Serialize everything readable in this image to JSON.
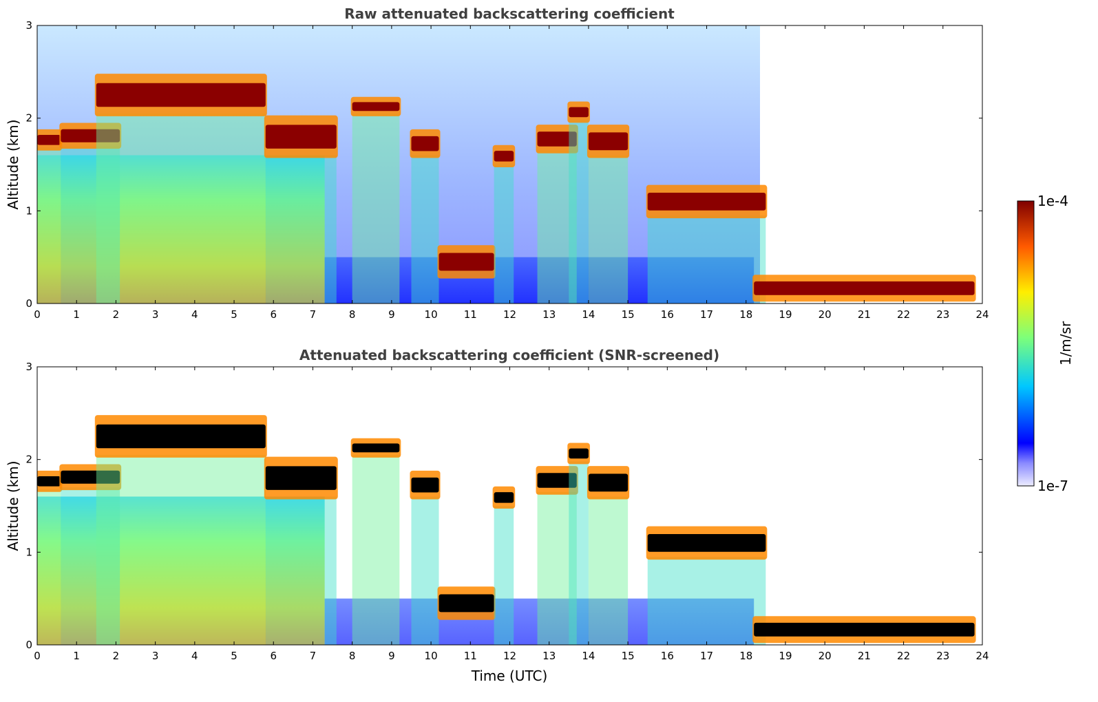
{
  "chart_data": [
    {
      "type": "heatmap",
      "title": "Raw attenuated backscattering coefficient",
      "xlabel": "",
      "ylabel": "Altitude (km)",
      "xlim": [
        0,
        24
      ],
      "ylim": [
        0,
        3
      ],
      "x_ticks": [
        "0",
        "1",
        "2",
        "3",
        "4",
        "5",
        "6",
        "7",
        "8",
        "9",
        "10",
        "11",
        "12",
        "13",
        "14",
        "15",
        "16",
        "17",
        "18",
        "19",
        "20",
        "21",
        "22",
        "23",
        "24"
      ],
      "y_ticks": [
        "0",
        "1",
        "2",
        "3"
      ],
      "screening": "raw",
      "layers": [
        {
          "t_start": 0.0,
          "t_end": 0.6,
          "base_km": 1.68,
          "top_km": 1.85
        },
        {
          "t_start": 0.6,
          "t_end": 2.1,
          "base_km": 1.7,
          "top_km": 1.92
        },
        {
          "t_start": 1.5,
          "t_end": 5.8,
          "base_km": 2.05,
          "top_km": 2.45
        },
        {
          "t_start": 5.8,
          "t_end": 7.6,
          "base_km": 1.6,
          "top_km": 2.0
        },
        {
          "t_start": 8.0,
          "t_end": 9.2,
          "base_km": 2.05,
          "top_km": 2.2
        },
        {
          "t_start": 9.5,
          "t_end": 10.2,
          "base_km": 1.6,
          "top_km": 1.85
        },
        {
          "t_start": 10.2,
          "t_end": 11.6,
          "base_km": 0.3,
          "top_km": 0.6
        },
        {
          "t_start": 11.6,
          "t_end": 12.1,
          "base_km": 1.5,
          "top_km": 1.68
        },
        {
          "t_start": 12.7,
          "t_end": 13.7,
          "base_km": 1.65,
          "top_km": 1.9
        },
        {
          "t_start": 13.5,
          "t_end": 14.0,
          "base_km": 1.98,
          "top_km": 2.15
        },
        {
          "t_start": 14.0,
          "t_end": 15.0,
          "base_km": 1.6,
          "top_km": 1.9
        },
        {
          "t_start": 15.5,
          "t_end": 18.5,
          "base_km": 0.95,
          "top_km": 1.25
        },
        {
          "t_start": 18.2,
          "t_end": 23.8,
          "base_km": 0.05,
          "top_km": 0.28
        }
      ]
    },
    {
      "type": "heatmap",
      "title": "Attenuated backscattering coefficient (SNR-screened)",
      "xlabel": "Time (UTC)",
      "ylabel": "Altitude (km)",
      "xlim": [
        0,
        24
      ],
      "ylim": [
        0,
        3
      ],
      "x_ticks": [
        "0",
        "1",
        "2",
        "3",
        "4",
        "5",
        "6",
        "7",
        "8",
        "9",
        "10",
        "11",
        "12",
        "13",
        "14",
        "15",
        "16",
        "17",
        "18",
        "19",
        "20",
        "21",
        "22",
        "23",
        "24"
      ],
      "y_ticks": [
        "0",
        "1",
        "2",
        "3"
      ],
      "screening": "SNR-screened",
      "layers": [
        {
          "t_start": 0.0,
          "t_end": 0.6,
          "base_km": 1.68,
          "top_km": 1.85
        },
        {
          "t_start": 0.6,
          "t_end": 2.1,
          "base_km": 1.7,
          "top_km": 1.92
        },
        {
          "t_start": 1.5,
          "t_end": 5.8,
          "base_km": 2.05,
          "top_km": 2.45
        },
        {
          "t_start": 5.8,
          "t_end": 7.6,
          "base_km": 1.6,
          "top_km": 2.0
        },
        {
          "t_start": 8.0,
          "t_end": 9.2,
          "base_km": 2.05,
          "top_km": 2.2
        },
        {
          "t_start": 9.5,
          "t_end": 10.2,
          "base_km": 1.6,
          "top_km": 1.85
        },
        {
          "t_start": 10.2,
          "t_end": 11.6,
          "base_km": 0.3,
          "top_km": 0.6
        },
        {
          "t_start": 11.6,
          "t_end": 12.1,
          "base_km": 1.5,
          "top_km": 1.68
        },
        {
          "t_start": 12.7,
          "t_end": 13.7,
          "base_km": 1.65,
          "top_km": 1.9
        },
        {
          "t_start": 13.5,
          "t_end": 14.0,
          "base_km": 1.98,
          "top_km": 2.15
        },
        {
          "t_start": 14.0,
          "t_end": 15.0,
          "base_km": 1.6,
          "top_km": 1.9
        },
        {
          "t_start": 15.5,
          "t_end": 18.5,
          "base_km": 0.95,
          "top_km": 1.25
        },
        {
          "t_start": 18.2,
          "t_end": 23.8,
          "base_km": 0.05,
          "top_km": 0.28
        }
      ]
    }
  ],
  "colorbar": {
    "label": "1/m/sr",
    "max_label": "1e-4",
    "min_label": "1e-7",
    "scale": "log",
    "colormap": [
      "#e8e8ff",
      "#0000ff",
      "#00c8ff",
      "#7dff7a",
      "#ffee00",
      "#ff6a00",
      "#7f0000"
    ]
  }
}
